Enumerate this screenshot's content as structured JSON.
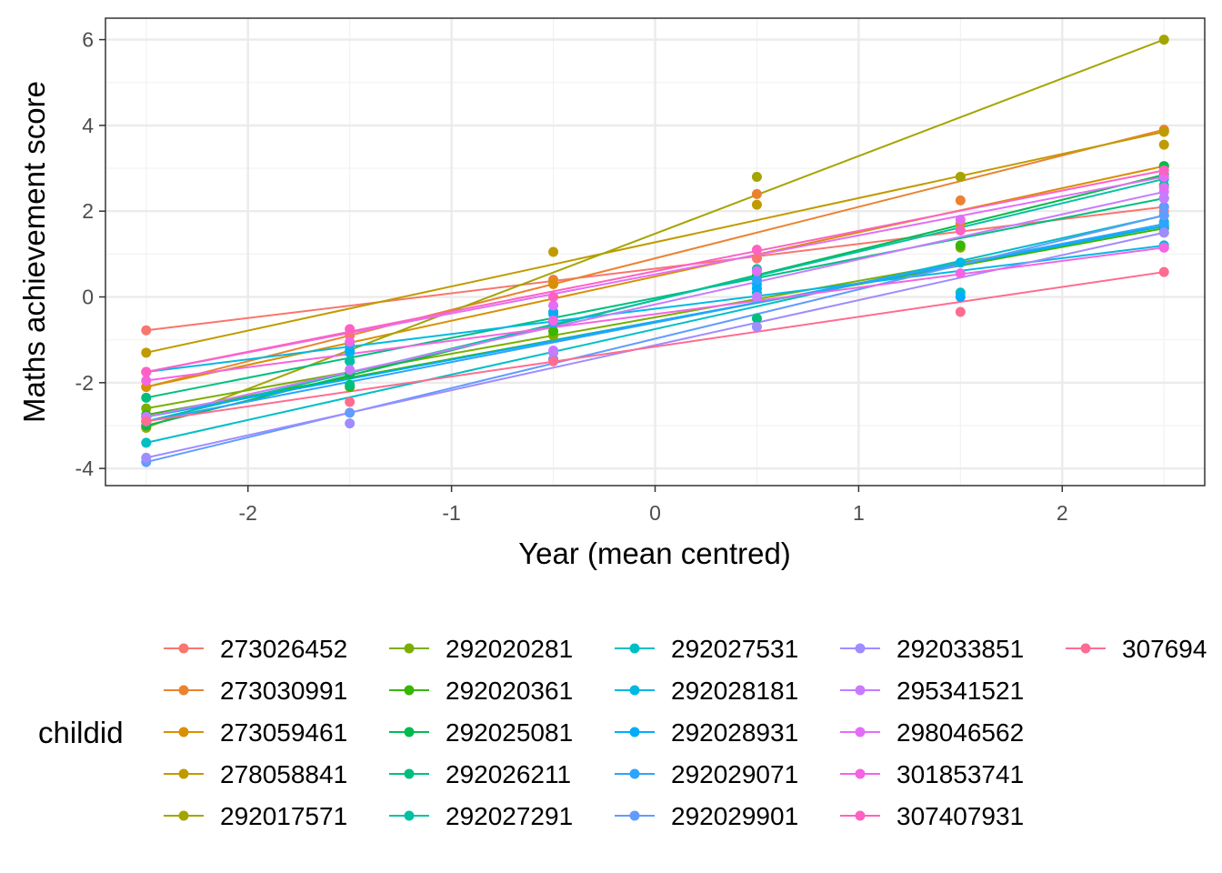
{
  "chart_data": {
    "type": "scatter",
    "xlabel": "Year (mean centred)",
    "ylabel": "Maths achievement score",
    "xlim": [
      -2.7,
      2.7
    ],
    "ylim": [
      -4.4,
      6.5
    ],
    "x_ticks": [
      -2,
      -1,
      0,
      1,
      2
    ],
    "x_tick_labels": [
      "-2",
      "-1",
      "0",
      "1",
      "2"
    ],
    "y_ticks": [
      -4,
      -2,
      0,
      2,
      4,
      6
    ],
    "y_tick_labels": [
      "-4",
      "-2",
      "0",
      "2",
      "4",
      "6"
    ],
    "grid": true,
    "legend_position": "bottom",
    "legend_title": "childid",
    "x_values": [
      -2.5,
      -1.5,
      -0.5,
      0.5,
      1.5,
      2.5
    ],
    "series": [
      {
        "name": "273026452",
        "color": "#F8766D",
        "fit": [
          -0.78,
          2.1
        ],
        "points": [
          [
            -1.5,
            -0.9
          ],
          [
            0.5,
            0.9
          ],
          [
            2.5,
            2.0
          ]
        ]
      },
      {
        "name": "273030991",
        "color": "#EA8331",
        "fit": [
          -2.1,
          3.9
        ],
        "points": [
          [
            -0.5,
            0.4
          ],
          [
            0.5,
            2.4
          ],
          [
            1.5,
            2.25
          ],
          [
            2.5,
            3.87
          ]
        ]
      },
      {
        "name": "273059461",
        "color": "#D89000",
        "fit": [
          -2.1,
          3.05
        ],
        "points": [
          [
            -0.5,
            0.3
          ],
          [
            1.5,
            1.7
          ],
          [
            2.5,
            3.05
          ]
        ]
      },
      {
        "name": "278058841",
        "color": "#C09B00",
        "fit": [
          -1.3,
          3.85
        ],
        "points": [
          [
            -0.5,
            1.05
          ],
          [
            0.5,
            2.15
          ],
          [
            1.5,
            2.8
          ],
          [
            2.5,
            3.55
          ]
        ]
      },
      {
        "name": "292017571",
        "color": "#A3A500",
        "fit": [
          -3.05,
          6.0
        ],
        "points": [
          [
            -2.5,
            -3.05
          ],
          [
            0.5,
            2.8
          ],
          [
            1.5,
            2.8
          ]
        ]
      },
      {
        "name": "292020281",
        "color": "#7CAE00",
        "fit": [
          -2.6,
          1.65
        ],
        "points": [
          [
            -1.5,
            -1.5
          ],
          [
            -0.5,
            -0.9
          ],
          [
            1.5,
            1.15
          ],
          [
            2.5,
            1.6
          ]
        ]
      },
      {
        "name": "292020361",
        "color": "#39B600",
        "fit": [
          -2.75,
          1.6
        ],
        "points": [
          [
            -1.5,
            -2.1
          ],
          [
            -0.5,
            -0.8
          ],
          [
            1.5,
            1.2
          ]
        ]
      },
      {
        "name": "292025081",
        "color": "#00BB4E",
        "fit": [
          -3.0,
          2.85
        ],
        "points": [
          [
            -1.5,
            -1.8
          ],
          [
            0.5,
            0.5
          ],
          [
            2.5,
            3.05
          ]
        ]
      },
      {
        "name": "292026211",
        "color": "#00BF7D",
        "fit": [
          -2.35,
          2.3
        ],
        "points": [
          [
            -1.5,
            -2.05
          ],
          [
            0.5,
            -0.5
          ],
          [
            2.5,
            2.6
          ]
        ]
      },
      {
        "name": "292027291",
        "color": "#00C1A3",
        "fit": [
          -2.9,
          2.75
        ],
        "points": [
          [
            -1.5,
            -1.5
          ],
          [
            0.5,
            0.65
          ],
          [
            2.5,
            2.3
          ]
        ]
      },
      {
        "name": "292027531",
        "color": "#00BFC4",
        "fit": [
          -3.4,
          1.9
        ],
        "points": [
          [
            -1.5,
            -1.3
          ],
          [
            0.5,
            0.1
          ],
          [
            1.5,
            0.1
          ],
          [
            2.5,
            1.75
          ]
        ]
      },
      {
        "name": "292028181",
        "color": "#00B9E3",
        "fit": [
          -1.75,
          1.2
        ],
        "points": [
          [
            -1.5,
            -1.1
          ],
          [
            -0.5,
            -0.4
          ],
          [
            0.5,
            0.3
          ],
          [
            1.5,
            0.8
          ]
        ]
      },
      {
        "name": "292028931",
        "color": "#00ADFA",
        "fit": [
          -2.8,
          1.65
        ],
        "points": [
          [
            -1.5,
            -1.25
          ],
          [
            -0.5,
            -0.35
          ],
          [
            0.5,
            0.2
          ],
          [
            1.5,
            0.0
          ]
        ]
      },
      {
        "name": "292029071",
        "color": "#2BA4FF",
        "fit": [
          -2.9,
          1.7
        ],
        "points": [
          [
            -2.5,
            -2.8
          ],
          [
            -0.5,
            -0.6
          ],
          [
            0.5,
            0.4
          ]
        ]
      },
      {
        "name": "292029901",
        "color": "#619CFF",
        "fit": [
          -3.85,
          1.9
        ],
        "points": [
          [
            -1.5,
            -2.7
          ],
          [
            -0.5,
            -1.45
          ],
          [
            2.5,
            2.1
          ]
        ]
      },
      {
        "name": "292033851",
        "color": "#9F8CFF",
        "fit": [
          -3.75,
          1.5
        ],
        "points": [
          [
            -1.5,
            -2.95
          ],
          [
            -0.5,
            -1.3
          ],
          [
            0.5,
            -0.7
          ],
          [
            2.5,
            1.5
          ]
        ]
      },
      {
        "name": "295341521",
        "color": "#C77CFF",
        "fit": [
          -2.8,
          2.45
        ],
        "points": [
          [
            -1.5,
            -1.7
          ],
          [
            -0.5,
            -1.25
          ],
          [
            0.5,
            0.0
          ],
          [
            2.5,
            2.3
          ]
        ]
      },
      {
        "name": "298046562",
        "color": "#E36EF6",
        "fit": [
          -1.75,
          2.8
        ],
        "points": [
          [
            -0.5,
            -0.2
          ],
          [
            0.5,
            0.6
          ],
          [
            1.5,
            1.8
          ],
          [
            2.5,
            2.55
          ]
        ]
      },
      {
        "name": "301853741",
        "color": "#F564E3",
        "fit": [
          -1.95,
          1.15
        ],
        "points": [
          [
            -1.5,
            -1.05
          ],
          [
            -0.5,
            -0.55
          ],
          [
            1.5,
            0.55
          ],
          [
            2.5,
            1.15
          ]
        ]
      },
      {
        "name": "307407931",
        "color": "#FF61C3",
        "fit": [
          -1.75,
          2.95
        ],
        "points": [
          [
            -1.5,
            -0.75
          ],
          [
            -0.5,
            0.0
          ],
          [
            0.5,
            1.1
          ],
          [
            1.5,
            1.55
          ]
        ]
      },
      {
        "name": "307694",
        "color": "#FF6C91",
        "fit": [
          -2.9,
          0.58
        ],
        "points": [
          [
            -1.5,
            -2.45
          ],
          [
            -0.5,
            -1.5
          ],
          [
            1.5,
            -0.35
          ]
        ]
      }
    ]
  }
}
